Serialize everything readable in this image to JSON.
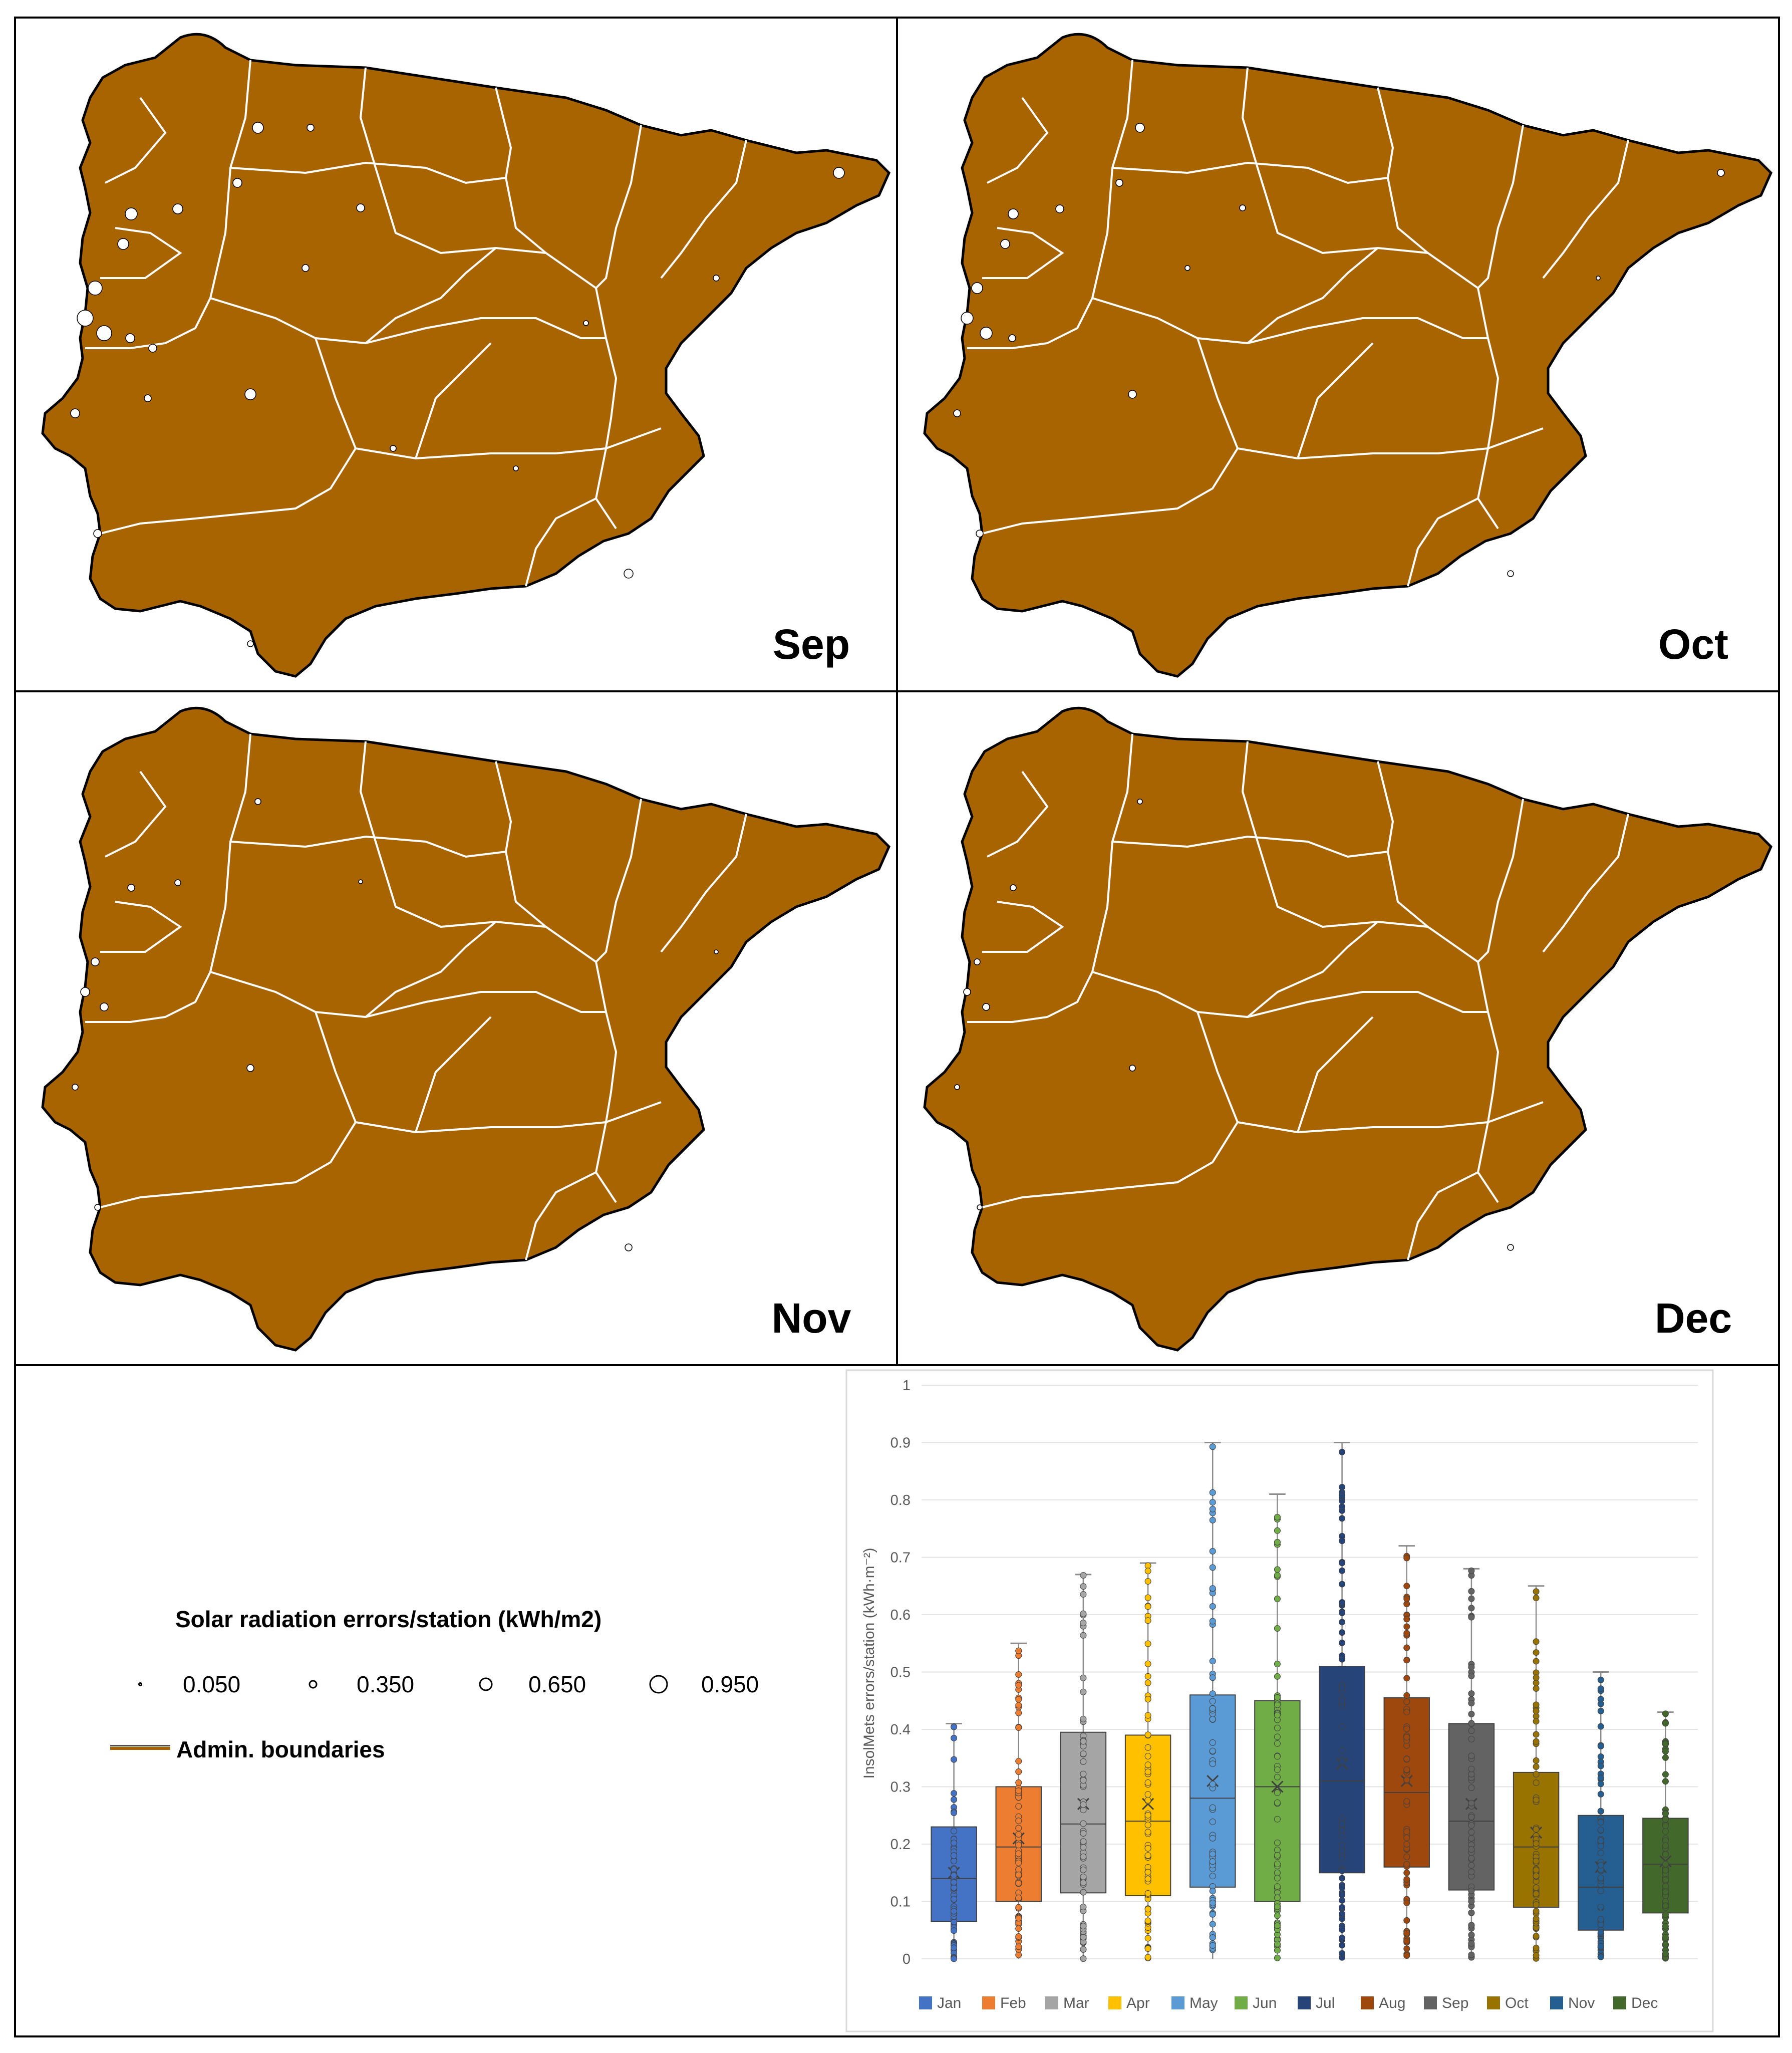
{
  "maps": {
    "panels": [
      {
        "month": "Sep"
      },
      {
        "month": "Oct"
      },
      {
        "month": "Nov"
      },
      {
        "month": "Dec"
      }
    ]
  },
  "legend": {
    "title": "Solar radiation errors/station (kWh/m2)",
    "sizes": [
      "0.050",
      "0.350",
      "0.650",
      "0.950"
    ],
    "boundary_label": "Admin. boundaries"
  },
  "colors": {
    "land": "#A86400",
    "boundary": "#FFFFFF",
    "panel_border": "#000000",
    "station": "#FFFFFF"
  },
  "chart_data": {
    "type": "box",
    "ylabel": "InsolMets errors/station (kWh·m⁻²)",
    "ylim": [
      0,
      1
    ],
    "yticks": [
      "0",
      "0.1",
      "0.2",
      "0.3",
      "0.4",
      "0.5",
      "0.6",
      "0.7",
      "0.8",
      "0.9",
      "1"
    ],
    "categories": [
      "Jan",
      "Feb",
      "Mar",
      "Apr",
      "May",
      "Jun",
      "Jul",
      "Aug",
      "Sep",
      "Oct",
      "Nov",
      "Dec"
    ],
    "colors": [
      "#4472C4",
      "#ED7D31",
      "#A5A5A5",
      "#FFC000",
      "#5B9BD5",
      "#70AD47",
      "#264478",
      "#9E480E",
      "#636363",
      "#997300",
      "#255E91",
      "#43682B"
    ],
    "series": [
      {
        "name": "Jan",
        "min": 0.0,
        "q1": 0.065,
        "median": 0.14,
        "q3": 0.23,
        "max": 0.41,
        "mean": 0.15
      },
      {
        "name": "Feb",
        "min": 0.0,
        "q1": 0.1,
        "median": 0.195,
        "q3": 0.3,
        "max": 0.55,
        "mean": 0.21
      },
      {
        "name": "Mar",
        "min": 0.0,
        "q1": 0.115,
        "median": 0.235,
        "q3": 0.395,
        "max": 0.67,
        "mean": 0.27
      },
      {
        "name": "Apr",
        "min": 0.0,
        "q1": 0.11,
        "median": 0.24,
        "q3": 0.39,
        "max": 0.69,
        "mean": 0.27
      },
      {
        "name": "May",
        "min": 0.0,
        "q1": 0.125,
        "median": 0.28,
        "q3": 0.46,
        "max": 0.9,
        "mean": 0.31
      },
      {
        "name": "Jun",
        "min": 0.0,
        "q1": 0.1,
        "median": 0.3,
        "q3": 0.45,
        "max": 0.81,
        "mean": 0.3
      },
      {
        "name": "Jul",
        "min": 0.0,
        "q1": 0.15,
        "median": 0.31,
        "q3": 0.51,
        "max": 0.9,
        "mean": 0.34
      },
      {
        "name": "Aug",
        "min": 0.0,
        "q1": 0.16,
        "median": 0.29,
        "q3": 0.455,
        "max": 0.72,
        "mean": 0.31
      },
      {
        "name": "Sep",
        "min": 0.0,
        "q1": 0.12,
        "median": 0.24,
        "q3": 0.41,
        "max": 0.68,
        "mean": 0.27
      },
      {
        "name": "Oct",
        "min": 0.0,
        "q1": 0.09,
        "median": 0.195,
        "q3": 0.325,
        "max": 0.65,
        "mean": 0.22
      },
      {
        "name": "Nov",
        "min": 0.0,
        "q1": 0.05,
        "median": 0.125,
        "q3": 0.25,
        "max": 0.5,
        "mean": 0.16
      },
      {
        "name": "Dec",
        "min": 0.0,
        "q1": 0.08,
        "median": 0.165,
        "q3": 0.245,
        "max": 0.43,
        "mean": 0.17
      }
    ]
  }
}
